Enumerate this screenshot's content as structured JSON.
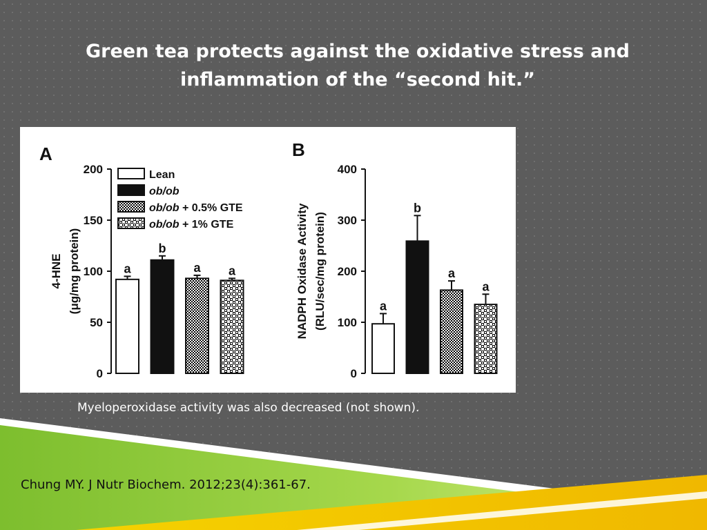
{
  "slide": {
    "title_line1": "Green tea protects against the oxidative stress and",
    "title_line2": "inflammation of the “second hit.”",
    "caption": "Myeloperoxidase activity was also decreased (not shown).",
    "citation": "Chung MY. J Nutr Biochem. 2012;23(4):361-67.",
    "colors": {
      "background": "#5c5c5c",
      "title": "#ffffff",
      "band_green": "#8cc63f",
      "band_yellow": "#f2c800",
      "band_white": "#ffffff"
    }
  },
  "legend": [
    {
      "label": "Lean",
      "pattern": "open",
      "italic_part": ""
    },
    {
      "label": "ob/ob",
      "pattern": "solid",
      "italic_part": "ob/ob"
    },
    {
      "label": "ob/ob + 0.5% GTE",
      "pattern": "fine-checker",
      "italic_part": "ob/ob"
    },
    {
      "label": "ob/ob + 1% GTE",
      "pattern": "coarse-checker",
      "italic_part": "ob/ob"
    }
  ],
  "chart_data": [
    {
      "type": "bar",
      "panel_label": "A",
      "ylabel": "4-HNE",
      "ylabel_unit": "(μg/mg protein)",
      "ylim": [
        0,
        200
      ],
      "yticks": [
        0,
        50,
        100,
        150,
        200
      ],
      "categories": [
        "Lean",
        "ob/ob",
        "ob/ob + 0.5% GTE",
        "ob/ob + 1% GTE"
      ],
      "values": [
        92,
        111,
        93,
        91
      ],
      "errors": [
        3,
        4,
        3,
        2
      ],
      "sig_letters": [
        "a",
        "b",
        "a",
        "a"
      ],
      "patterns": [
        "open",
        "solid",
        "fine-checker",
        "coarse-checker"
      ]
    },
    {
      "type": "bar",
      "panel_label": "B",
      "ylabel": "NADPH Oxidase Activity",
      "ylabel_unit": "(RLU/sec/mg protein)",
      "ylim": [
        0,
        400
      ],
      "yticks": [
        0,
        100,
        200,
        300,
        400
      ],
      "categories": [
        "Lean",
        "ob/ob",
        "ob/ob + 0.5% GTE",
        "ob/ob + 1% GTE"
      ],
      "values": [
        97,
        259,
        163,
        135
      ],
      "errors": [
        20,
        50,
        18,
        20
      ],
      "sig_letters": [
        "a",
        "b",
        "a",
        "a"
      ],
      "patterns": [
        "open",
        "solid",
        "fine-checker",
        "coarse-checker"
      ]
    }
  ]
}
